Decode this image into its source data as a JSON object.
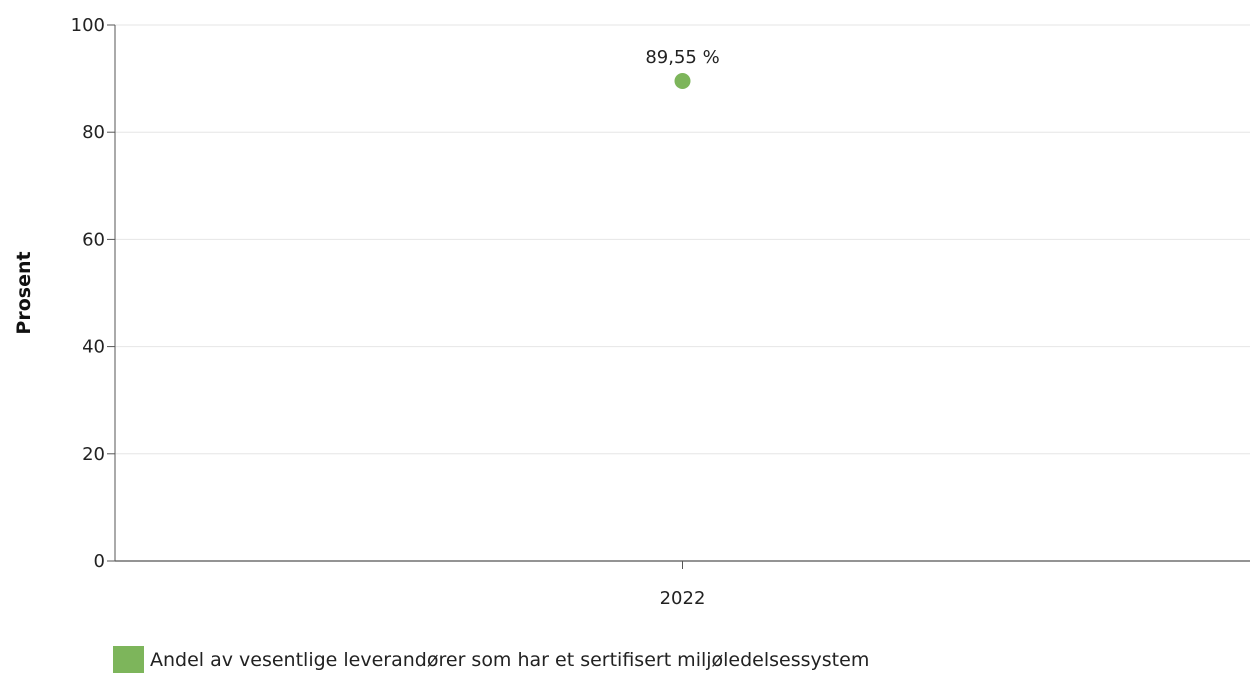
{
  "chart_data": {
    "type": "scatter",
    "categories": [
      "2022"
    ],
    "series": [
      {
        "name": "Andel av vesentlige leverandører som har et sertifisert miljøledelsessystem",
        "values": [
          89.55
        ],
        "data_labels": [
          "89,55 %"
        ]
      }
    ],
    "ylabel": "Prosent",
    "xlabel": "",
    "ylim": [
      0,
      100
    ],
    "yticks": [
      0,
      20,
      40,
      60,
      80,
      100
    ],
    "ytick_labels": [
      "0",
      "20",
      "40",
      "60",
      "80",
      "100"
    ],
    "grid": true,
    "legend_position": "bottom-left",
    "colors": {
      "series": "#7db55b",
      "grid": "#e6e6e6",
      "axis": "#555555"
    }
  }
}
